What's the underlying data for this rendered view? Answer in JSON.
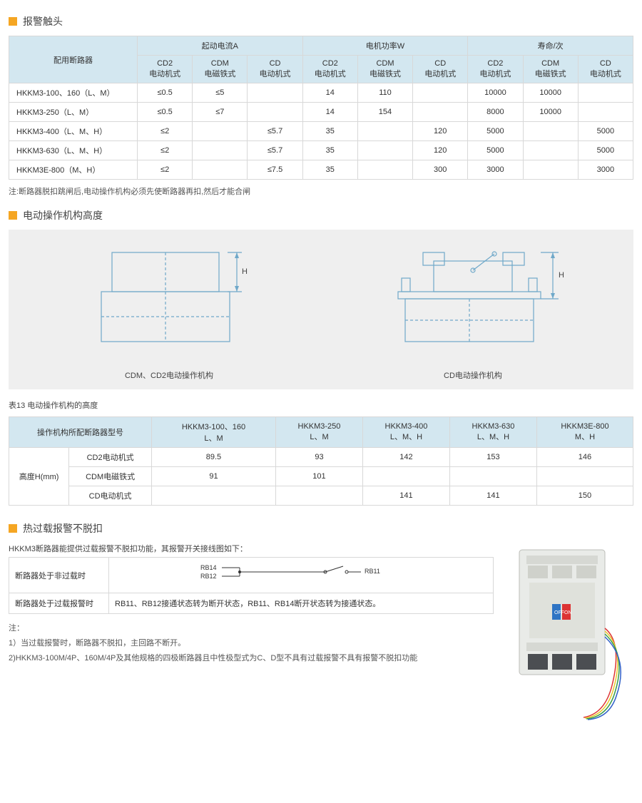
{
  "colors": {
    "accent_square": "#f5a623",
    "table_header_bg": "#d3e7f0",
    "table_border": "#d8d8d8",
    "diagram_bg": "#efefef",
    "body_text": "#333333",
    "note_text": "#555555",
    "diagram_stroke": "#6fa8c9",
    "breaker_body": "#e9ebe8",
    "breaker_dark": "#4b4e52",
    "wire_red": "#d33",
    "wire_yellow": "#e8c830",
    "wire_green": "#3a9c4a",
    "wire_blue": "#3060c8"
  },
  "typography": {
    "body_family": "Microsoft YaHei, Arial, sans-serif",
    "title_fontsize_pt": 11,
    "table_fontsize_pt": 8.5,
    "note_fontsize_pt": 8.5
  },
  "section1": {
    "title": "报警触头",
    "table": {
      "col_group_header_blank": "配用断路器",
      "groups": [
        "起动电流A",
        "电机功率W",
        "寿命/次"
      ],
      "sub_cols": [
        "CD2\n电动机式",
        "CDM\n电磁铁式",
        "CD\n电动机式"
      ],
      "rows": [
        {
          "label": "HKKM3-100、160（L、M）",
          "cells": [
            "≤0.5",
            "≤5",
            "",
            "14",
            "110",
            "",
            "10000",
            "10000",
            ""
          ]
        },
        {
          "label": "HKKM3-250（L、M）",
          "cells": [
            "≤0.5",
            "≤7",
            "",
            "14",
            "154",
            "",
            "8000",
            "10000",
            ""
          ]
        },
        {
          "label": "HKKM3-400（L、M、H）",
          "cells": [
            "≤2",
            "",
            "≤5.7",
            "35",
            "",
            "120",
            "5000",
            "",
            "5000"
          ]
        },
        {
          "label": "HKKM3-630（L、M、H）",
          "cells": [
            "≤2",
            "",
            "≤5.7",
            "35",
            "",
            "120",
            "5000",
            "",
            "5000"
          ]
        },
        {
          "label": "HKKM3E-800（M、H）",
          "cells": [
            "≤2",
            "",
            "≤7.5",
            "35",
            "",
            "300",
            "3000",
            "",
            "3000"
          ]
        }
      ]
    },
    "note": "注:断路器脱扣跳闸后,电动操作机构必须先使断路器再扣,然后才能合闸"
  },
  "section2": {
    "title": "电动操作机构高度",
    "diagram": {
      "background_color": "#efefef",
      "stroke": "#6fa8c9",
      "dash_pattern": "4,3",
      "left_caption": "CDM、CD2电动操作机构",
      "right_caption": "CD电动操作机构",
      "H_label": "H"
    },
    "subcaption": "表13  电动操作机构的高度",
    "table": {
      "row_header_label": "操作机构所配断路器型号",
      "cols": [
        "HKKM3-100、160\nL、M",
        "HKKM3-250\nL、M",
        "HKKM3-400\nL、M、H",
        "HKKM3-630\nL、M、H",
        "HKKM3E-800\nM、H"
      ],
      "row_group_label": "高度H(mm)",
      "rows": [
        {
          "label": "CD2电动机式",
          "cells": [
            "89.5",
            "93",
            "142",
            "153",
            "146"
          ]
        },
        {
          "label": "CDM电磁铁式",
          "cells": [
            "91",
            "101",
            "",
            "",
            ""
          ]
        },
        {
          "label": "CD电动机式",
          "cells": [
            "",
            "",
            "141",
            "141",
            "150"
          ]
        }
      ]
    }
  },
  "section3": {
    "title": "热过载报警不脱扣",
    "intro": "HKKM3断路器能提供过载报警不脱扣功能，其报警开关接线图如下：",
    "mini_table": {
      "rows": [
        {
          "label": "断路器处于非过载时",
          "content_type": "diagram",
          "terminals": {
            "top": "RB14",
            "bottom": "RB12",
            "right": "RB11"
          }
        },
        {
          "label": "断路器处于过载报警时",
          "content_type": "text",
          "text": "RB11、RB12接通状态转为断开状态，RB11、RB14断开状态转为接通状态。"
        }
      ]
    },
    "notes": [
      "注：",
      "1）当过载报警时，断路器不脱扣，主回路不断开。",
      "2)HKKM3-100M/4P、160M/4P及其他规格的四极断路器且中性极型式为C、D型不具有过载报警不具有报警不脱扣功能"
    ],
    "image": {
      "alt": "断路器示意图",
      "body_color": "#e9ebe8",
      "switch_colors": {
        "on": "#d33",
        "off": "#2e74c4"
      },
      "wires": [
        "#d33",
        "#e8c830",
        "#3a9c4a",
        "#3060c8"
      ]
    }
  }
}
